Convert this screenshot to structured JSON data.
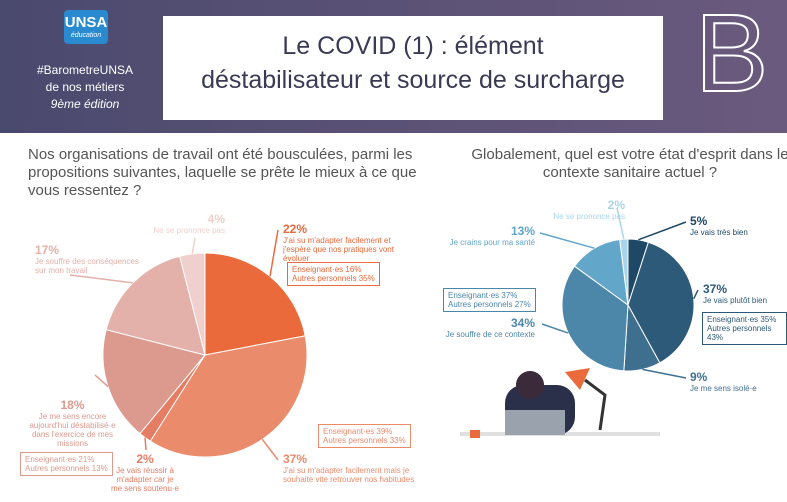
{
  "header": {
    "logo": "UNSA",
    "logo_sub": "éducation",
    "hashtag": "#BarometreUNSA",
    "line2": "de nos métiers",
    "edition": "9ème édition",
    "title_line1": "Le COVID (1) : élément",
    "title_line2": "déstabilisateur et source de surcharge",
    "letter": "B"
  },
  "chart_data": [
    {
      "type": "pie",
      "title": "Nos organisations de travail ont été bousculées, parmi les propositions suivantes, laquelle se prête le mieux à ce que vous ressentez ?",
      "categories": [
        "J'ai su m'adapter facilement et j'espère que nos pratiques vont évoluer",
        "J'ai su m'adapter facilement mais je souhaite vite retrouver nos habitudes",
        "Je vais réussir à m'adapter car je me sens soutenu·e",
        "Je me sens encore aujourd'hui déstabilisé·e dans l'exercice de mes missions",
        "Je souffre des conséquences sur mon travail",
        "Ne se prononce pas"
      ],
      "values": [
        22,
        37,
        2,
        18,
        17,
        4
      ],
      "value_labels": [
        "22%",
        "37%",
        "2%",
        "18%",
        "17%",
        "4%"
      ],
      "colors": [
        "#ea6a3b",
        "#ea8b6c",
        "#e57d64",
        "#dc9a8e",
        "#e4b0aa",
        "#f0d0cc"
      ],
      "details": [
        [
          "Enseignant·es 16%",
          "Autres personnels 35%"
        ],
        [
          "Enseignant·es 39%",
          "Autres personnels 33%"
        ],
        null,
        [
          "Enseignant·es 21%",
          "Autres personnels 13%"
        ],
        null,
        null
      ]
    },
    {
      "type": "pie",
      "title": "Globalement, quel est votre état d'esprit dans le contexte sanitaire actuel ?",
      "categories": [
        "Je vais très bien",
        "Je vais plutôt bien",
        "Je me sens isolé·e",
        "Je souffre de ce contexte",
        "Je crains pour ma santé",
        "Ne se prononce pas"
      ],
      "values": [
        5,
        37,
        9,
        34,
        13,
        2
      ],
      "value_labels": [
        "5%",
        "37%",
        "9%",
        "34%",
        "13%",
        "2%"
      ],
      "colors": [
        "#1f4866",
        "#2e5a79",
        "#3e6f8f",
        "#4c87aa",
        "#62a6ca",
        "#a9d5ea"
      ],
      "details": [
        null,
        [
          "Enseignant·es 35%",
          "Autres personnels 43%"
        ],
        null,
        [
          "Enseignant·es 37%",
          "Autres personnels 27%"
        ],
        null,
        null
      ]
    }
  ]
}
